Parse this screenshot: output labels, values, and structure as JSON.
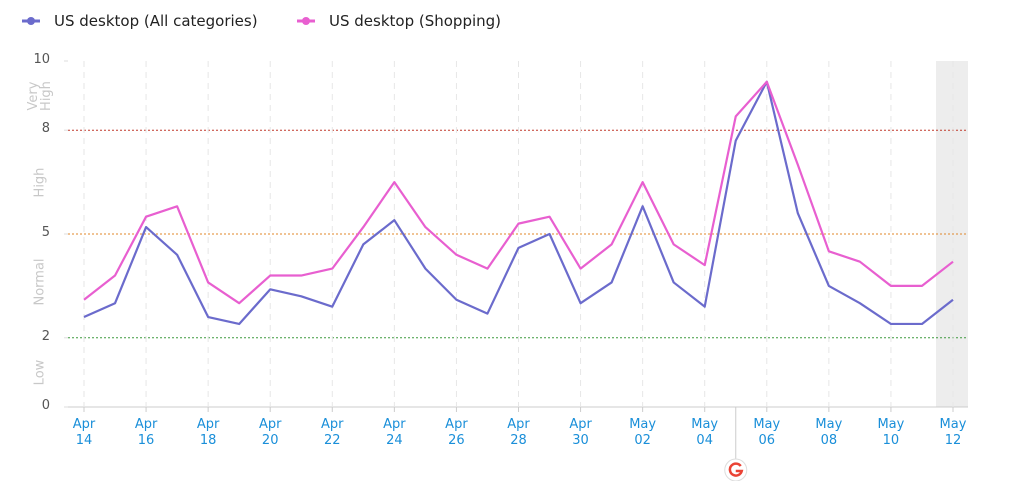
{
  "chart_data": {
    "type": "line",
    "categories": [
      "Apr 14",
      null,
      "Apr 16",
      null,
      "Apr 18",
      null,
      "Apr 20",
      null,
      "Apr 22",
      null,
      "Apr 24",
      null,
      "Apr 26",
      null,
      "Apr 28",
      null,
      "Apr 30",
      null,
      "May 02",
      null,
      "May 04",
      null,
      "May 06",
      null,
      "May 08",
      null,
      "May 10",
      null,
      "May 12"
    ],
    "series": [
      {
        "name": "US desktop (All categories)",
        "color": "#6b6bcc",
        "values": [
          2.6,
          3.0,
          5.2,
          4.4,
          2.6,
          2.4,
          3.4,
          3.2,
          2.9,
          4.7,
          5.4,
          4.0,
          3.1,
          2.7,
          4.6,
          5.0,
          3.0,
          3.6,
          5.8,
          3.6,
          2.9,
          7.7,
          9.4,
          5.6,
          3.5,
          3.0,
          2.4,
          2.4,
          3.1
        ]
      },
      {
        "name": "US desktop (Shopping)",
        "color": "#e85fd0",
        "values": [
          3.1,
          3.8,
          5.5,
          5.8,
          3.6,
          3.0,
          3.8,
          3.8,
          4.0,
          5.2,
          6.5,
          5.2,
          4.4,
          4.0,
          5.3,
          5.5,
          4.0,
          4.7,
          6.5,
          4.7,
          4.1,
          8.4,
          9.4,
          7.0,
          4.5,
          4.2,
          3.5,
          3.5,
          4.2
        ]
      }
    ],
    "ylim": [
      0,
      10
    ],
    "yticks": [
      0,
      2,
      5,
      8,
      10
    ],
    "zones": [
      "Low",
      "Normal",
      "High",
      "Very High"
    ],
    "thresholds": [
      {
        "value": 2,
        "color": "#3f9a3f"
      },
      {
        "value": 5,
        "color": "#e0872a"
      },
      {
        "value": 8,
        "color": "#c0392b"
      }
    ]
  }
}
